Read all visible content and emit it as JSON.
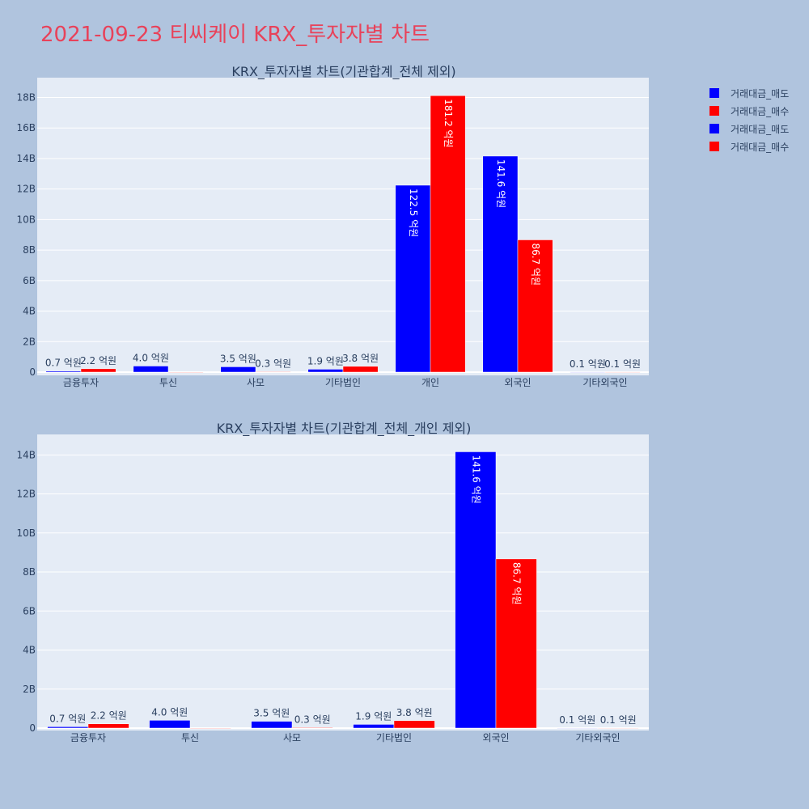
{
  "page": {
    "title": "2021-09-23 티씨케이 KRX_투자자별 차트"
  },
  "colors": {
    "sell": "#0000ff",
    "buy": "#ff0000",
    "plot_bg": "#e5ecf6",
    "page_bg": "#b0c4de",
    "title": "#e8425a"
  },
  "legend": [
    {
      "label": "거래대금_매도",
      "color": "#0000ff"
    },
    {
      "label": "거래대금_매수",
      "color": "#ff0000"
    },
    {
      "label": "거래대금_매도",
      "color": "#0000ff"
    },
    {
      "label": "거래대금_매수",
      "color": "#ff0000"
    }
  ],
  "chart_data": [
    {
      "type": "bar",
      "title": "KRX_투자자별 차트(기관합계_전체 제외)",
      "categories": [
        "금융투자",
        "투신",
        "사모",
        "기타법인",
        "개인",
        "외국인",
        "기타외국인"
      ],
      "ylim": [
        0,
        19
      ],
      "yticks": [
        0,
        2,
        4,
        6,
        8,
        10,
        12,
        14,
        16,
        18
      ],
      "ytick_labels": [
        "0",
        "2B",
        "4B",
        "6B",
        "8B",
        "10B",
        "12B",
        "14B",
        "16B",
        "18B"
      ],
      "grid": true,
      "series": [
        {
          "name": "거래대금_매도",
          "color": "#0000ff",
          "values": [
            0.07,
            0.4,
            0.35,
            0.19,
            12.25,
            14.16,
            0.01
          ],
          "labels": [
            "0.7 억원",
            "4.0 억원",
            "3.5 억원",
            "1.9 억원",
            "122.5 억원",
            "141.6 억원",
            "0.1 억원"
          ]
        },
        {
          "name": "거래대금_매수",
          "color": "#ff0000",
          "values": [
            0.22,
            0.0,
            0.03,
            0.38,
            18.12,
            8.67,
            0.01
          ],
          "labels": [
            "2.2 억원",
            "",
            "0.3 억원",
            "3.8 억원",
            "181.2 억원",
            "86.7 억원",
            "0.1 억원"
          ]
        }
      ]
    },
    {
      "type": "bar",
      "title": "KRX_투자자별 차트(기관합계_전체_개인 제외)",
      "categories": [
        "금융투자",
        "투신",
        "사모",
        "기타법인",
        "외국인",
        "기타외국인"
      ],
      "ylim": [
        0,
        15
      ],
      "yticks": [
        0,
        2,
        4,
        6,
        8,
        10,
        12,
        14
      ],
      "ytick_labels": [
        "0",
        "2B",
        "4B",
        "6B",
        "8B",
        "10B",
        "12B",
        "14B"
      ],
      "grid": true,
      "series": [
        {
          "name": "거래대금_매도",
          "color": "#0000ff",
          "values": [
            0.07,
            0.4,
            0.35,
            0.19,
            14.16,
            0.01
          ],
          "labels": [
            "0.7 억원",
            "4.0 억원",
            "3.5 억원",
            "1.9 억원",
            "141.6 억원",
            "0.1 억원"
          ]
        },
        {
          "name": "거래대금_매수",
          "color": "#ff0000",
          "values": [
            0.22,
            0.0,
            0.03,
            0.38,
            8.67,
            0.01
          ],
          "labels": [
            "2.2 억원",
            "",
            "0.3 억원",
            "3.8 억원",
            "86.7 억원",
            "0.1 억원"
          ]
        }
      ]
    }
  ]
}
